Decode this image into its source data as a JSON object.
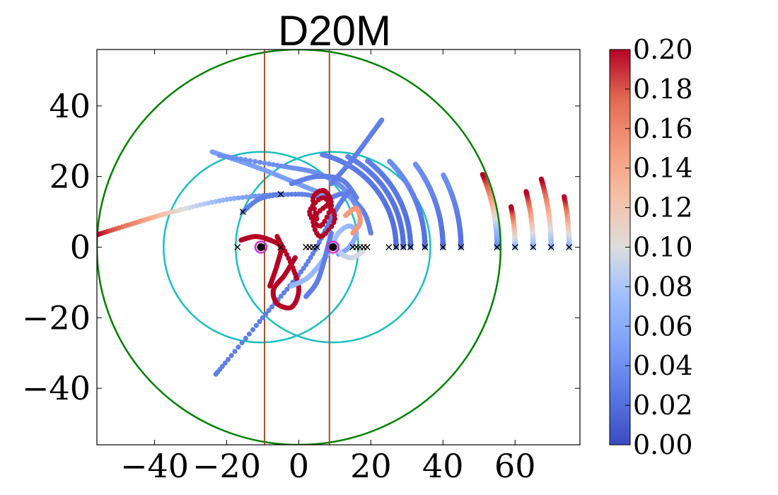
{
  "chart_data": {
    "type": "scatter",
    "title": "D20M",
    "xlabel": "",
    "ylabel": "",
    "xlim": [
      -56,
      78
    ],
    "ylim": [
      -56,
      56
    ],
    "xticks": [
      -40,
      -20,
      0,
      20,
      40,
      60
    ],
    "xtick_labels": [
      "−40",
      "−20",
      "0",
      "20",
      "40",
      "60"
    ],
    "yticks": [
      -40,
      -20,
      0,
      20,
      40
    ],
    "ytick_labels": [
      "−40",
      "−20",
      "0",
      "20",
      "40"
    ],
    "grid": false,
    "colorbar": {
      "colormap": "coolwarm",
      "range": [
        0.0,
        0.2
      ],
      "tick_values": [
        0.0,
        0.02,
        0.04,
        0.06,
        0.08,
        0.1,
        0.12,
        0.14,
        0.16,
        0.18,
        0.2
      ],
      "tick_labels": [
        "0.00",
        "0.02",
        "0.04",
        "0.06",
        "0.08",
        "0.10",
        "0.12",
        "0.14",
        "0.16",
        "0.18",
        "0.20"
      ]
    },
    "bodies": [
      {
        "name": "primary",
        "x": -10.5,
        "y": 0,
        "marker_color": "#000000",
        "ring_color": "#cc33cc"
      },
      {
        "name": "secondary",
        "x": 9.5,
        "y": 0,
        "marker_color": "#000000",
        "ring_color": "#cc33cc"
      }
    ],
    "circles": [
      {
        "name": "outer-boundary",
        "center": [
          0,
          0
        ],
        "radius": 56,
        "color": "#008000"
      },
      {
        "name": "primary-sphere",
        "center": [
          -10.5,
          0
        ],
        "radius": 27,
        "color": "#19bfbf"
      },
      {
        "name": "secondary-sphere",
        "center": [
          9.5,
          0
        ],
        "radius": 27,
        "color": "#19bfbf"
      }
    ],
    "vertical_lines": [
      {
        "name": "left-line",
        "x": -9.5,
        "color": "#a0522d"
      },
      {
        "name": "right-line",
        "x": 8.5,
        "color": "#a0522d"
      }
    ],
    "start_points": {
      "marker": "x",
      "color": "#000000",
      "points": [
        [
          -17,
          0
        ],
        [
          -15.5,
          10
        ],
        [
          -10,
          0
        ],
        [
          -5,
          0
        ],
        [
          -5,
          15
        ],
        [
          2,
          0
        ],
        [
          3,
          0
        ],
        [
          4,
          0
        ],
        [
          5,
          0
        ],
        [
          15,
          0
        ],
        [
          16,
          0
        ],
        [
          17,
          0
        ],
        [
          18,
          0
        ],
        [
          19,
          0
        ],
        [
          25,
          0
        ],
        [
          27,
          0
        ],
        [
          29,
          0
        ],
        [
          31,
          0
        ],
        [
          35,
          0
        ],
        [
          40,
          0
        ],
        [
          45,
          0
        ],
        [
          55,
          0
        ],
        [
          60,
          0
        ],
        [
          65,
          0
        ],
        [
          70,
          0
        ],
        [
          75,
          0
        ]
      ]
    },
    "series": [
      {
        "name": "arc-r26",
        "curve": "arc",
        "center": [
          0,
          0
        ],
        "radius": 27,
        "angle_range": [
          0,
          76
        ],
        "value_range": [
          0.02,
          0.03
        ]
      },
      {
        "name": "arc-r29",
        "curve": "arc",
        "center": [
          0,
          0
        ],
        "radius": 29,
        "angle_range": [
          0,
          62
        ],
        "value_range": [
          0.02,
          0.03
        ]
      },
      {
        "name": "arc-r31",
        "curve": "arc",
        "center": [
          0,
          0
        ],
        "radius": 31,
        "angle_range": [
          0,
          52
        ],
        "value_range": [
          0.02,
          0.03
        ]
      },
      {
        "name": "arc-r35",
        "curve": "arc",
        "center": [
          0,
          0
        ],
        "radius": 35,
        "angle_range": [
          0,
          44
        ],
        "value_range": [
          0.02,
          0.04
        ]
      },
      {
        "name": "arc-r40",
        "curve": "arc",
        "center": [
          0,
          0
        ],
        "radius": 40,
        "angle_range": [
          0,
          36
        ],
        "value_range": [
          0.02,
          0.04
        ]
      },
      {
        "name": "arc-r45",
        "curve": "arc",
        "center": [
          0,
          0
        ],
        "radius": 45,
        "angle_range": [
          0,
          27
        ],
        "value_range": [
          0.02,
          0.04
        ]
      },
      {
        "name": "arc-r55",
        "curve": "arc",
        "center": [
          0,
          0
        ],
        "radius": 55,
        "angle_range": [
          0,
          22
        ],
        "value_range": [
          0.03,
          0.2
        ]
      },
      {
        "name": "arc-r60",
        "curve": "arc",
        "center": [
          0,
          0
        ],
        "radius": 60,
        "angle_range": [
          0,
          11
        ],
        "value_range": [
          0.06,
          0.2
        ]
      },
      {
        "name": "arc-r65",
        "curve": "arc",
        "center": [
          0,
          0
        ],
        "radius": 65,
        "angle_range": [
          0,
          14
        ],
        "value_range": [
          0.06,
          0.2
        ]
      },
      {
        "name": "arc-r70",
        "curve": "arc",
        "center": [
          0,
          0
        ],
        "radius": 70,
        "angle_range": [
          0,
          16
        ],
        "value_range": [
          0.06,
          0.2
        ]
      },
      {
        "name": "arc-r75",
        "curve": "arc",
        "center": [
          0,
          0
        ],
        "radius": 75,
        "angle_range": [
          0,
          11
        ],
        "value_range": [
          0.06,
          0.2
        ]
      },
      {
        "name": "escape-left",
        "curve": "path",
        "points": [
          [
            -5,
            15
          ],
          [
            -20,
            13.5
          ],
          [
            -35,
            10
          ],
          [
            -45,
            7
          ],
          [
            -56,
            3.5
          ]
        ],
        "value_range": [
          0.02,
          0.2
        ]
      },
      {
        "name": "arc-top-left",
        "curve": "path",
        "points": [
          [
            -15.5,
            10
          ],
          [
            -10,
            14
          ],
          [
            0,
            15
          ],
          [
            8,
            14
          ],
          [
            13,
            15
          ],
          [
            18,
            10
          ],
          [
            20,
            4
          ]
        ],
        "value_range": [
          0.03,
          0.03
        ]
      },
      {
        "name": "arc-far-top",
        "curve": "path",
        "points": [
          [
            -24,
            27
          ],
          [
            -10,
            22
          ],
          [
            2,
            17
          ],
          [
            7,
            15
          ]
        ],
        "value_range": [
          0.05,
          0.05
        ]
      },
      {
        "name": "arc-top-right",
        "curve": "path",
        "points": [
          [
            -22,
            26
          ],
          [
            -5,
            23
          ],
          [
            5,
            21
          ],
          [
            12,
            17
          ],
          [
            17,
            10
          ]
        ],
        "value_range": [
          0.04,
          0.04
        ]
      },
      {
        "name": "diag-up",
        "curve": "path",
        "points": [
          [
            9,
            18
          ],
          [
            15,
            25
          ],
          [
            23,
            36
          ]
        ],
        "value_range": [
          0.03,
          0.03
        ]
      },
      {
        "name": "diag-down",
        "curve": "path",
        "points": [
          [
            -23,
            -36
          ],
          [
            -10,
            -20
          ],
          [
            2,
            -5
          ],
          [
            10,
            10
          ],
          [
            14,
            16
          ]
        ],
        "value_range": [
          0.03,
          0.03
        ]
      },
      {
        "name": "arc-up-right",
        "curve": "path",
        "points": [
          [
            -2,
            18
          ],
          [
            5,
            20
          ],
          [
            12,
            19
          ],
          [
            16,
            14
          ]
        ],
        "value_range": [
          0.03,
          0.03
        ]
      },
      {
        "name": "inner-swirl",
        "curve": "path",
        "points": [
          [
            5,
            8
          ],
          [
            4,
            14
          ],
          [
            7,
            16
          ],
          [
            9,
            12
          ],
          [
            6,
            6
          ],
          [
            3,
            10
          ],
          [
            7,
            14
          ],
          [
            10,
            8
          ],
          [
            6,
            3
          ],
          [
            4,
            8
          ],
          [
            8,
            12
          ]
        ],
        "value_range": [
          0.2,
          0.2
        ]
      },
      {
        "name": "lower-loop",
        "curve": "path",
        "points": [
          [
            -6,
            3
          ],
          [
            -2,
            -5
          ],
          [
            0,
            -12
          ],
          [
            -2,
            -17
          ],
          [
            -6,
            -16
          ],
          [
            -7,
            -12
          ],
          [
            -4,
            -8
          ],
          [
            -1,
            -3
          ]
        ],
        "value_range": [
          0.2,
          0.2
        ]
      },
      {
        "name": "left-spiral",
        "curve": "path",
        "points": [
          [
            -16,
            2
          ],
          [
            -12,
            3
          ],
          [
            -8,
            2
          ],
          [
            -5,
            0
          ],
          [
            -6,
            -5
          ],
          [
            -8,
            -11
          ]
        ],
        "value_range": [
          0.2,
          0.2
        ]
      },
      {
        "name": "right-loop",
        "curve": "path",
        "points": [
          [
            11,
            -2
          ],
          [
            14,
            0
          ],
          [
            16,
            4
          ],
          [
            14,
            6
          ],
          [
            11,
            4
          ],
          [
            10,
            1
          ],
          [
            12,
            -2
          ],
          [
            15,
            -3
          ],
          [
            18,
            -1
          ]
        ],
        "value_range": [
          0.05,
          0.1
        ]
      },
      {
        "name": "right-hook",
        "curve": "path",
        "points": [
          [
            13,
            9
          ],
          [
            16,
            11
          ],
          [
            17,
            7
          ],
          [
            15,
            4
          ]
        ],
        "value_range": [
          0.15,
          0.15
        ]
      },
      {
        "name": "pale-tail",
        "curve": "path",
        "points": [
          [
            8,
            -2
          ],
          [
            5,
            -6
          ],
          [
            2,
            -9
          ],
          [
            -2,
            -11
          ]
        ],
        "value_range": [
          0.07,
          0.07
        ]
      },
      {
        "name": "bottom-curve",
        "curve": "path",
        "points": [
          [
            9,
            4
          ],
          [
            7,
            -4
          ],
          [
            5,
            -10
          ],
          [
            2,
            -14
          ]
        ],
        "value_range": [
          0.03,
          0.03
        ]
      }
    ]
  }
}
